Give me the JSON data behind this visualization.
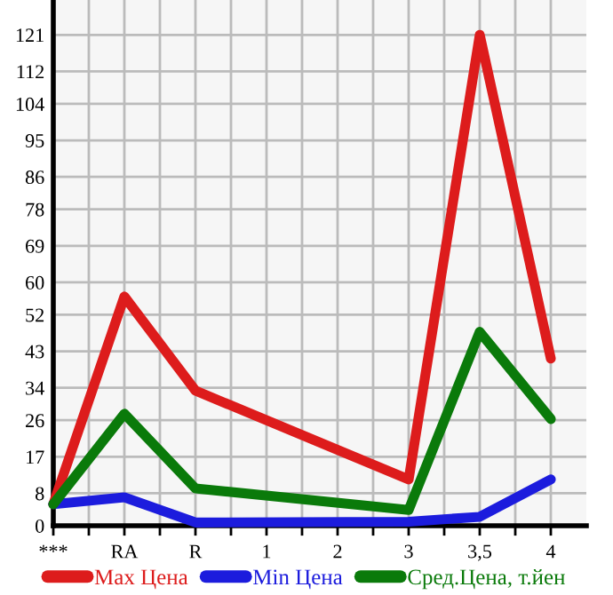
{
  "chart_data": {
    "type": "line",
    "categories": [
      "***",
      "RA",
      "R",
      "1",
      "2",
      "3",
      "3,5",
      "4"
    ],
    "series": [
      {
        "name": "Max Цена",
        "color": "#dd1c1c",
        "values": [
          5.3,
          56.5,
          33.3,
          null,
          null,
          11.4,
          121,
          41.2
        ]
      },
      {
        "name": "Min Цена",
        "color": "#1c1cdd",
        "values": [
          5.3,
          7.0,
          0.8,
          null,
          null,
          1.0,
          2.2,
          11.4
        ]
      },
      {
        "name": "Сред.Цена, т.йен",
        "color": "#0a7a0a",
        "values": [
          5.3,
          27.6,
          9.2,
          null,
          null,
          3.9,
          47.8,
          26.3
        ]
      }
    ],
    "ylim": [
      0,
      129.6
    ],
    "yticks": [
      0,
      8,
      17,
      26,
      34,
      43,
      52,
      60,
      69,
      78,
      86,
      95,
      104,
      112,
      121
    ],
    "grid": true,
    "legend": "bottom",
    "marker": "none",
    "line_style": "solid"
  }
}
